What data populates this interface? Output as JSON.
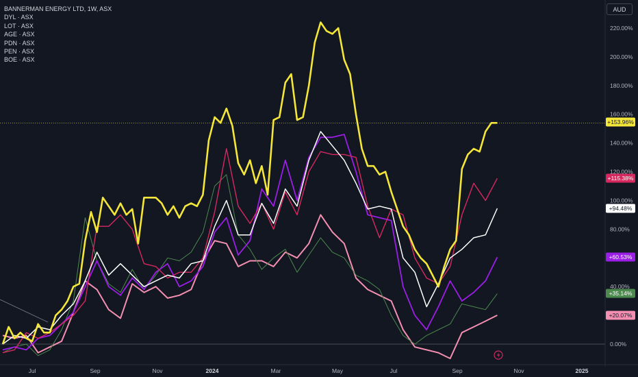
{
  "legend": {
    "main": "BANNERMAN ENERGY LTD, 1W, ASX",
    "symbols": [
      "DYL · ASX",
      "LOT · ASX",
      "AGE · ASX",
      "PDN · ASX",
      "PEN · ASX",
      "BOE · ASX"
    ]
  },
  "currency": "AUD",
  "colors": {
    "background": "#131722",
    "BMN": "#f5e63a",
    "red": "#d6285f",
    "white": "#ffffff",
    "purple": "#9b1ee6",
    "green": "#4c8a4e",
    "pink": "#f48fb1"
  },
  "chart_data": {
    "type": "line",
    "ylim": [
      -10,
      232
    ],
    "y_unit": "%",
    "y_ticks": [
      "220.00%",
      "200.00%",
      "180.00%",
      "160.00%",
      "140.00%",
      "120.00%",
      "100.00%",
      "80.00%",
      "60.00%",
      "40.00%",
      "20.00%",
      "0.00%"
    ],
    "x_ticks": [
      "Jul",
      "Sep",
      "Nov",
      "2024",
      "Mar",
      "May",
      "Jul",
      "Sep",
      "Nov",
      "2025"
    ],
    "x_ticks_bold": [
      "2024",
      "2025"
    ],
    "series": [
      {
        "color_key": "BMN",
        "last_label": "+153.96%",
        "x": [
          0,
          1,
          2,
          3,
          4,
          5,
          6,
          7,
          8,
          9,
          10,
          11,
          12,
          13,
          14,
          15,
          16,
          17,
          18,
          19,
          20,
          21,
          22,
          23,
          24,
          25,
          26,
          27,
          28,
          29,
          30,
          31,
          32,
          33,
          34,
          35,
          36,
          37,
          38,
          39,
          40,
          41,
          42,
          43,
          44,
          45,
          46,
          47,
          48,
          49,
          50,
          51,
          52,
          53,
          54,
          55,
          56,
          57,
          58,
          59,
          60,
          61,
          62,
          63,
          64,
          65,
          66,
          67,
          68,
          69,
          70,
          71,
          72,
          73,
          74,
          75,
          76,
          77,
          78,
          79,
          80,
          81,
          82,
          83,
          84
        ],
        "values": [
          0,
          12,
          4,
          8,
          4,
          2,
          14,
          8,
          8,
          20,
          24,
          30,
          40,
          42,
          72,
          92,
          78,
          102,
          96,
          90,
          98,
          90,
          94,
          70,
          102,
          102,
          102,
          98,
          90,
          96,
          88,
          96,
          98,
          96,
          104,
          142,
          158,
          154,
          164,
          152,
          126,
          118,
          128,
          112,
          124,
          104,
          156,
          158,
          182,
          188,
          156,
          158,
          180,
          210,
          224,
          218,
          216,
          220,
          198,
          188,
          160,
          136,
          124,
          124,
          118,
          120,
          106,
          94,
          82,
          76,
          66,
          60,
          56,
          48,
          40,
          54,
          66,
          72,
          122,
          132,
          136,
          134,
          148,
          154,
          154
        ],
        "y_override_note": ""
      },
      {
        "color_key": "red",
        "last_label": "+115.38%",
        "x": [
          0,
          2,
          4,
          6,
          8,
          10,
          12,
          14,
          16,
          18,
          20,
          22,
          24,
          26,
          28,
          30,
          32,
          34,
          36,
          38,
          40,
          42,
          44,
          46,
          48,
          50,
          52,
          54,
          56,
          58,
          60,
          62,
          64,
          66,
          68,
          70,
          72,
          74,
          76,
          78,
          80,
          82,
          84
        ],
        "values": [
          -6,
          -4,
          8,
          4,
          8,
          14,
          20,
          30,
          82,
          82,
          90,
          80,
          56,
          54,
          46,
          50,
          50,
          60,
          92,
          136,
          96,
          84,
          98,
          80,
          106,
          90,
          120,
          134,
          132,
          132,
          130,
          96,
          74,
          94,
          90,
          60,
          46,
          42,
          54,
          90,
          112,
          100,
          115.38
        ]
      },
      {
        "color_key": "white",
        "last_label": "+94.48%",
        "x": [
          0,
          2,
          4,
          6,
          8,
          10,
          12,
          14,
          16,
          18,
          20,
          22,
          24,
          26,
          28,
          30,
          32,
          34,
          36,
          38,
          40,
          42,
          44,
          46,
          48,
          50,
          52,
          54,
          56,
          58,
          60,
          62,
          64,
          66,
          68,
          70,
          72,
          74,
          76,
          78,
          80,
          82,
          84
        ],
        "values": [
          0,
          6,
          4,
          12,
          10,
          20,
          28,
          44,
          64,
          48,
          56,
          48,
          40,
          44,
          48,
          46,
          56,
          58,
          82,
          100,
          76,
          76,
          98,
          84,
          108,
          96,
          128,
          148,
          138,
          128,
          112,
          94,
          96,
          94,
          60,
          50,
          26,
          42,
          60,
          66,
          74,
          76,
          94.48
        ]
      },
      {
        "color_key": "purple",
        "last_label": "+60.53%",
        "x": [
          0,
          2,
          4,
          6,
          8,
          10,
          12,
          14,
          16,
          18,
          20,
          22,
          24,
          26,
          28,
          30,
          32,
          34,
          36,
          38,
          40,
          42,
          44,
          46,
          48,
          50,
          52,
          54,
          56,
          58,
          60,
          62,
          64,
          66,
          68,
          70,
          72,
          74,
          76,
          78,
          80,
          82,
          84
        ],
        "values": [
          -4,
          -2,
          -4,
          4,
          6,
          14,
          22,
          40,
          58,
          40,
          34,
          46,
          38,
          50,
          56,
          40,
          44,
          54,
          78,
          88,
          62,
          72,
          108,
          96,
          128,
          100,
          130,
          144,
          144,
          146,
          120,
          90,
          88,
          86,
          40,
          20,
          10,
          26,
          44,
          30,
          36,
          44,
          60.53
        ]
      },
      {
        "color_key": "green",
        "last_label": "+35.14%",
        "x": [
          0,
          2,
          4,
          6,
          8,
          10,
          12,
          14,
          16,
          18,
          20,
          22,
          24,
          26,
          28,
          30,
          32,
          34,
          36,
          38,
          40,
          42,
          44,
          46,
          48,
          50,
          52,
          54,
          56,
          58,
          60,
          62,
          64,
          66,
          68,
          70,
          72,
          74,
          76,
          78,
          80,
          82,
          84
        ],
        "values": [
          -6,
          -2,
          0,
          -8,
          -4,
          10,
          30,
          88,
          58,
          42,
          36,
          52,
          38,
          48,
          60,
          58,
          64,
          78,
          110,
          118,
          76,
          66,
          52,
          60,
          66,
          50,
          62,
          74,
          64,
          60,
          48,
          44,
          38,
          20,
          6,
          0,
          6,
          10,
          14,
          28,
          26,
          24,
          35.14
        ]
      },
      {
        "color_key": "pink",
        "last_label": "+20.07%",
        "x": [
          0,
          2,
          4,
          6,
          8,
          10,
          12,
          14,
          16,
          18,
          20,
          22,
          24,
          26,
          28,
          30,
          32,
          34,
          36,
          38,
          40,
          42,
          44,
          46,
          48,
          50,
          52,
          54,
          56,
          58,
          60,
          62,
          64,
          66,
          68,
          70,
          72,
          74,
          76,
          78,
          80,
          82,
          84
        ],
        "values": [
          6,
          4,
          6,
          -6,
          -2,
          2,
          22,
          44,
          38,
          24,
          18,
          42,
          36,
          40,
          32,
          34,
          38,
          58,
          72,
          70,
          54,
          58,
          58,
          54,
          64,
          60,
          70,
          90,
          78,
          70,
          46,
          38,
          34,
          30,
          10,
          -2,
          -4,
          -6,
          -10,
          8,
          12,
          16,
          20.07
        ]
      }
    ]
  }
}
